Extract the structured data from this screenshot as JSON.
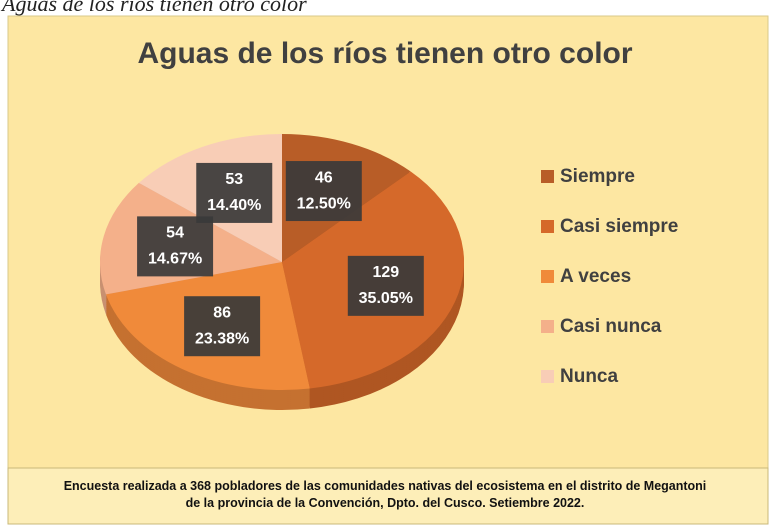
{
  "caption": "Aguas de los ríos tienen otro color",
  "chart_data": {
    "type": "pie",
    "title": "Aguas de los ríos tienen otro color",
    "categories": [
      "Siempre",
      "Casi siempre",
      "A  veces",
      "Casi nunca",
      "Nunca"
    ],
    "values": [
      46,
      129,
      86,
      54,
      53
    ],
    "percent_labels": [
      "12.50%",
      "35.05%",
      "23.38%",
      "14.67%",
      "14.40%"
    ],
    "colors": [
      "#b85d27",
      "#d5692a",
      "#f08a3a",
      "#f4b08a",
      "#f8cdb6"
    ],
    "legend": "right",
    "note": "Encuesta realizada a 368 pobladores de las comunidades nativas del ecosistema  en el distrito de Megantoni de la provincia de la Convención,  Dpto. del Cusco. Setiembre 2022."
  }
}
